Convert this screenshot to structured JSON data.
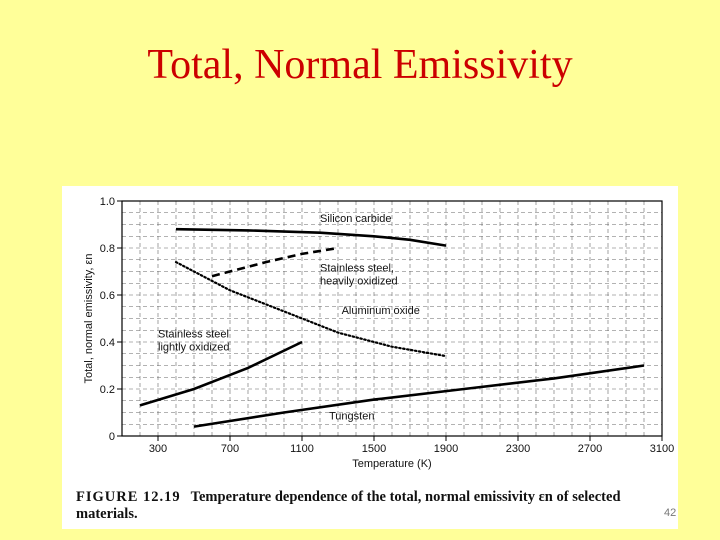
{
  "slide": {
    "title": "Total, Normal Emissivity",
    "page_number": "42"
  },
  "figure": {
    "label": "FIGURE 12.19",
    "caption": "Temperature dependence of the total, normal emissivity εn of selected materials."
  },
  "chart_data": {
    "type": "line",
    "xlabel": "Temperature (K)",
    "ylabel": "Total, normal emissivity, εn",
    "xlim": [
      100,
      3100
    ],
    "ylim": [
      0,
      1.0
    ],
    "x_ticks": [
      300,
      700,
      1100,
      1500,
      1900,
      2300,
      2700,
      3100
    ],
    "x_tick_labels": [
      "300",
      "700",
      "1100",
      "1500",
      "1900",
      "2300",
      "2700",
      "3100"
    ],
    "y_ticks": [
      0,
      0.2,
      0.4,
      0.6,
      0.8,
      1.0
    ],
    "y_tick_labels": [
      "0",
      "0.2",
      "0.4",
      "0.6",
      "0.8",
      "1.0"
    ],
    "grid": true,
    "legend": "none",
    "series": [
      {
        "name": "Silicon carbide",
        "style": "solid",
        "x": [
          400,
          800,
          1200,
          1500,
          1700,
          1900
        ],
        "y": [
          0.88,
          0.875,
          0.865,
          0.85,
          0.835,
          0.81
        ],
        "label_at": [
          1200,
          0.91
        ]
      },
      {
        "name": "Stainless steel, heavily oxidized",
        "style": "dashed",
        "x": [
          600,
          900,
          1100,
          1300
        ],
        "y": [
          0.68,
          0.74,
          0.775,
          0.8
        ],
        "label_at": [
          1200,
          0.7
        ]
      },
      {
        "name": "Aluminum oxide",
        "style": "dotted",
        "x": [
          400,
          700,
          1000,
          1300,
          1600,
          1900
        ],
        "y": [
          0.74,
          0.62,
          0.53,
          0.44,
          0.38,
          0.34
        ],
        "label_at": [
          1320,
          0.52
        ]
      },
      {
        "name": "Stainless steel lightly oxidized",
        "style": "solid",
        "x": [
          200,
          500,
          800,
          1100
        ],
        "y": [
          0.13,
          0.2,
          0.29,
          0.4
        ],
        "label_at": [
          300,
          0.42
        ]
      },
      {
        "name": "Tungsten",
        "style": "solid",
        "x": [
          500,
          1000,
          1500,
          2000,
          2500,
          3000
        ],
        "y": [
          0.04,
          0.1,
          0.155,
          0.2,
          0.245,
          0.3
        ],
        "label_at": [
          1250,
          0.07
        ]
      }
    ]
  }
}
